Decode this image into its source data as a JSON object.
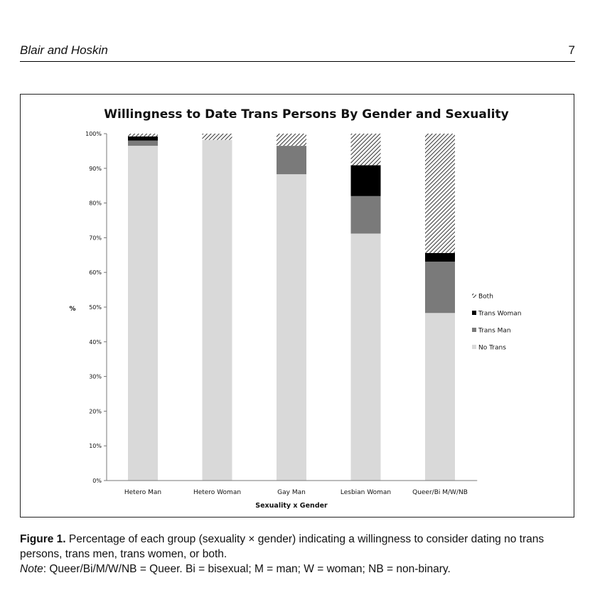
{
  "header": {
    "authors": "Blair and Hoskin",
    "page_number": "7"
  },
  "chart_data": {
    "type": "bar",
    "stacked": true,
    "title": "Willingness to Date Trans Persons By Gender and Sexuality",
    "xlabel": "Sexuality x Gender",
    "ylabel": "%",
    "ylim": [
      0,
      100
    ],
    "yticks": [
      "0%",
      "10%",
      "20%",
      "30%",
      "40%",
      "50%",
      "60%",
      "70%",
      "80%",
      "90%",
      "100%"
    ],
    "categories": [
      "Hetero Man",
      "Hetero Woman",
      "Gay Man",
      "Lesbian Woman",
      "Queer/Bi M/W/NB"
    ],
    "series": [
      {
        "name": "No Trans",
        "values": [
          96.5,
          98.2,
          88.3,
          71.2,
          48.3
        ],
        "color": "#d9d9d9"
      },
      {
        "name": "Trans Man",
        "values": [
          1.5,
          0.0,
          8.2,
          10.8,
          14.8
        ],
        "color": "#7a7a7a"
      },
      {
        "name": "Trans Woman",
        "values": [
          1.2,
          0.0,
          0.0,
          8.9,
          2.5
        ],
        "color": "#000000"
      },
      {
        "name": "Both",
        "values": [
          0.8,
          1.8,
          3.5,
          9.1,
          34.4
        ],
        "color": "hatched"
      }
    ],
    "legend_order": [
      "Both",
      "Trans Woman",
      "Trans Man",
      "No Trans"
    ],
    "legend_position": "right",
    "grid": false
  },
  "caption": {
    "figure_label": "Figure 1.",
    "text": "Percentage of each group (sexuality × gender) indicating a willingness to consider dating no trans persons, trans men, trans women, or both.",
    "note_label": "Note",
    "note_text": ": Queer/Bi/M/W/NB = Queer. Bi = bisexual; M = man; W = woman; NB = non-binary."
  }
}
